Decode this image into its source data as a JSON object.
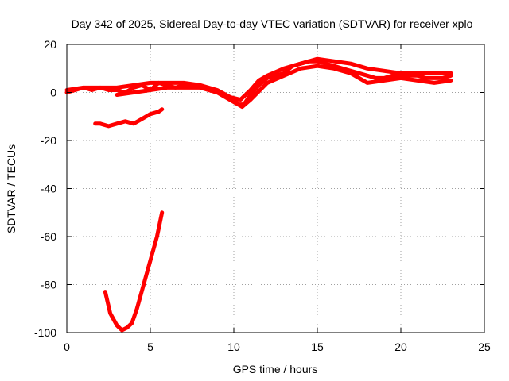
{
  "chart_data": {
    "type": "line",
    "title": "Day 342 of 2025, Sidereal Day-to-day VTEC variation (SDTVAR) for receiver xplo",
    "xlabel": "GPS time / hours",
    "ylabel": "SDTVAR / TECUs",
    "xlim": [
      0,
      25
    ],
    "ylim": [
      -100,
      20
    ],
    "xticks": [
      0,
      5,
      10,
      15,
      20,
      25
    ],
    "yticks": [
      20,
      0,
      -20,
      -40,
      -60,
      -80,
      -100
    ],
    "grid": true,
    "line_color": "#ff0000",
    "series": [
      {
        "name": "main",
        "x": [
          0,
          0.5,
          1,
          1.5,
          2,
          2.5,
          3,
          3.5,
          4,
          4.5,
          5,
          5.5,
          6,
          6.5,
          7,
          7.5,
          8,
          8.5,
          9,
          9.5,
          10,
          10.3,
          10.6,
          11,
          11.5,
          12,
          12.5,
          13,
          13.5,
          14,
          14.5,
          15,
          15.5,
          16,
          16.5,
          17,
          17.5,
          18,
          18.5,
          19,
          19.5,
          20,
          20.5,
          21,
          21.5,
          22,
          22.5,
          23
        ],
        "y": [
          0,
          1,
          2,
          1,
          2,
          1,
          1,
          0,
          2,
          3,
          1,
          4,
          3,
          2,
          3,
          3,
          2,
          1,
          0,
          -1,
          -3,
          -5,
          -5,
          -1,
          3,
          6,
          7,
          8,
          11,
          12,
          13,
          13,
          12,
          11,
          10,
          9,
          8,
          7,
          6,
          6,
          7,
          7,
          7,
          7,
          6,
          6,
          6,
          7
        ]
      },
      {
        "name": "upper-band",
        "x": [
          0,
          1,
          2,
          3,
          4,
          5,
          6,
          7,
          8,
          9,
          9.8,
          10.4,
          11,
          11.5,
          12,
          13,
          14,
          15,
          16,
          17,
          18,
          19,
          20,
          21,
          22,
          23
        ],
        "y": [
          1,
          2,
          2,
          2,
          3,
          4,
          4,
          4,
          3,
          1,
          -2,
          -3,
          1,
          5,
          7,
          10,
          12,
          14,
          13,
          12,
          10,
          9,
          8,
          8,
          8,
          8
        ]
      },
      {
        "name": "lower-band",
        "x": [
          3,
          4,
          5,
          6,
          7,
          8,
          9,
          10,
          10.5,
          11,
          12,
          13,
          14,
          15,
          16,
          17,
          18,
          19,
          20,
          21,
          22,
          23
        ],
        "y": [
          -1,
          0,
          1,
          2,
          2,
          2,
          0,
          -4,
          -6,
          -3,
          4,
          7,
          10,
          11,
          10,
          8,
          4,
          5,
          6,
          5,
          4,
          5
        ]
      },
      {
        "name": "segment-mid",
        "x": [
          1.7,
          2.0,
          2.5,
          3.0,
          3.5,
          4.0,
          4.5,
          5.0,
          5.5,
          5.7
        ],
        "y": [
          -13,
          -13,
          -14,
          -13,
          -12,
          -13,
          -11,
          -9,
          -8,
          -7
        ]
      },
      {
        "name": "segment-dip",
        "x": [
          2.3,
          2.6,
          3.0,
          3.3,
          3.6,
          3.9,
          4.2,
          4.6,
          5.0,
          5.4,
          5.7
        ],
        "y": [
          -83,
          -92,
          -97,
          -99,
          -98,
          -96,
          -90,
          -80,
          -70,
          -60,
          -50
        ]
      }
    ]
  }
}
